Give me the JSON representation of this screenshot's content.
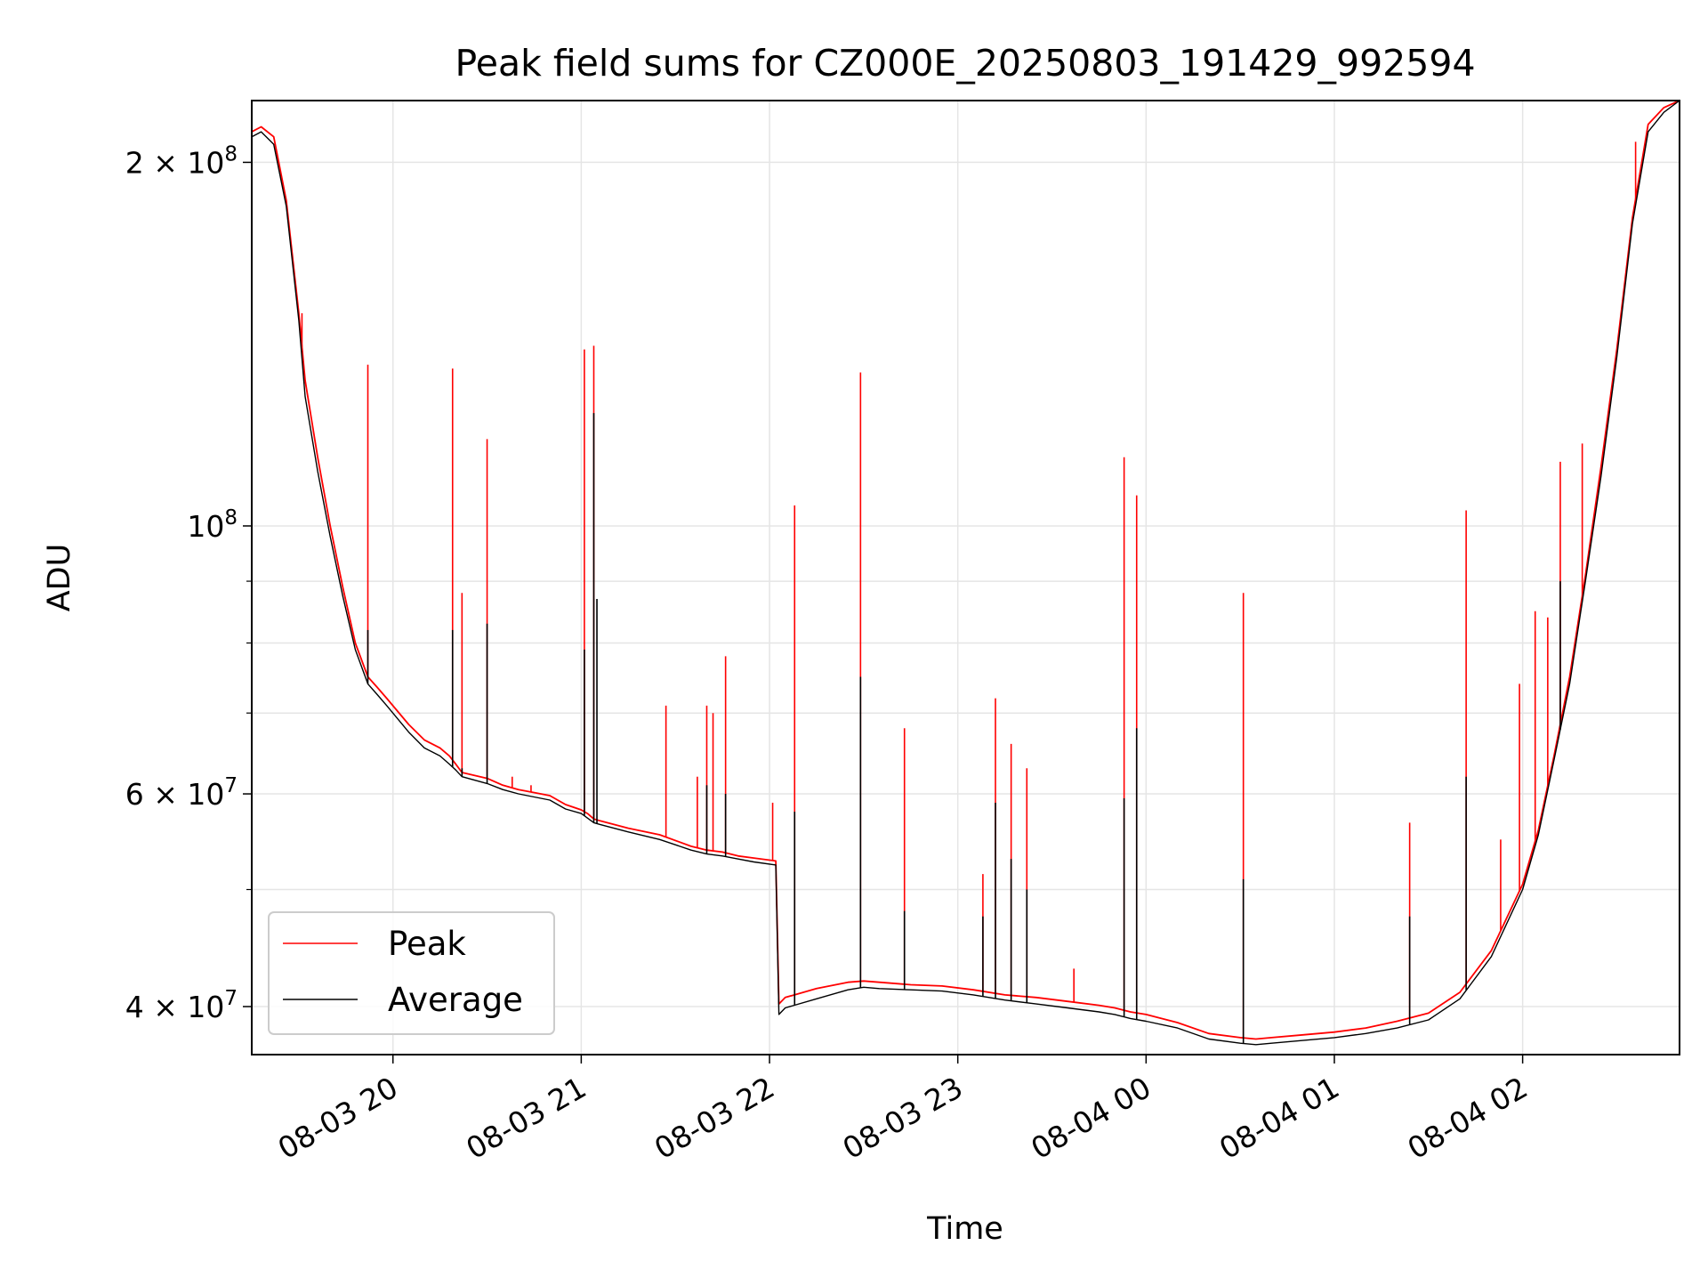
{
  "chart_data": {
    "type": "line",
    "title": "Peak field sums for CZ000E_20250803_191429_992594",
    "xlabel": "Time",
    "ylabel": "ADU",
    "yscale": "log",
    "x_unit": "time",
    "xlim": [
      "2025-08-03 19:15",
      "2025-08-04 02:50"
    ],
    "ylim": [
      36500000,
      225000000
    ],
    "grid": true,
    "legend_position": "lower-left",
    "x_ticks": [
      {
        "t": "2025-08-03 20:00",
        "label": "08-03 20"
      },
      {
        "t": "2025-08-03 21:00",
        "label": "08-03 21"
      },
      {
        "t": "2025-08-03 22:00",
        "label": "08-03 22"
      },
      {
        "t": "2025-08-03 23:00",
        "label": "08-03 23"
      },
      {
        "t": "2025-08-04 00:00",
        "label": "08-04 00"
      },
      {
        "t": "2025-08-04 01:00",
        "label": "08-04 01"
      },
      {
        "t": "2025-08-04 02:00",
        "label": "08-04 02"
      }
    ],
    "y_ticks": [
      {
        "v": 40000000,
        "mantissa": "4",
        "exp": "7"
      },
      {
        "v": 60000000,
        "mantissa": "6",
        "exp": "7"
      },
      {
        "v": 100000000,
        "mantissa": "",
        "exp": "8"
      },
      {
        "v": 200000000,
        "mantissa": "2",
        "exp": "8"
      }
    ],
    "y_minor_ticks": [
      50000000,
      70000000,
      80000000,
      90000000
    ],
    "series": [
      {
        "name": "Peak",
        "color": "#ff0000",
        "x": [
          "2025-08-03 19:15",
          "2025-08-03 19:18",
          "2025-08-03 19:22",
          "2025-08-03 19:26",
          "2025-08-03 19:30",
          "2025-08-03 19:32",
          "2025-08-03 19:36",
          "2025-08-03 19:40",
          "2025-08-03 19:44",
          "2025-08-03 19:48",
          "2025-08-03 19:52",
          "2025-08-03 19:55",
          "2025-08-03 19:58",
          "2025-08-03 20:05",
          "2025-08-03 20:10",
          "2025-08-03 20:15",
          "2025-08-03 20:18",
          "2025-08-03 20:20",
          "2025-08-03 20:22",
          "2025-08-03 20:30",
          "2025-08-03 20:35",
          "2025-08-03 20:40",
          "2025-08-03 20:50",
          "2025-08-03 20:55",
          "2025-08-03 21:00",
          "2025-08-03 21:02",
          "2025-08-03 21:04",
          "2025-08-03 21:06",
          "2025-08-03 21:15",
          "2025-08-03 21:25",
          "2025-08-03 21:35",
          "2025-08-03 21:40",
          "2025-08-03 21:45",
          "2025-08-03 21:50",
          "2025-08-03 21:55",
          "2025-08-03 22:02",
          "2025-08-03 22:03",
          "2025-08-03 22:05",
          "2025-08-03 22:15",
          "2025-08-03 22:25",
          "2025-08-03 22:30",
          "2025-08-03 22:35",
          "2025-08-03 22:45",
          "2025-08-03 22:55",
          "2025-08-03 23:05",
          "2025-08-03 23:15",
          "2025-08-03 23:25",
          "2025-08-03 23:35",
          "2025-08-03 23:45",
          "2025-08-03 23:50",
          "2025-08-03 23:55",
          "2025-08-04 00:00",
          "2025-08-04 00:10",
          "2025-08-04 00:20",
          "2025-08-04 00:30",
          "2025-08-04 00:35",
          "2025-08-04 00:40",
          "2025-08-04 00:50",
          "2025-08-04 01:00",
          "2025-08-04 01:10",
          "2025-08-04 01:20",
          "2025-08-04 01:30",
          "2025-08-04 01:40",
          "2025-08-04 01:50",
          "2025-08-04 02:00",
          "2025-08-04 02:05",
          "2025-08-04 02:10",
          "2025-08-04 02:15",
          "2025-08-04 02:20",
          "2025-08-04 02:25",
          "2025-08-04 02:30",
          "2025-08-04 02:35",
          "2025-08-04 02:40",
          "2025-08-04 02:45",
          "2025-08-04 02:50"
        ],
        "y": [
          212000000,
          214000000,
          210000000,
          186000000,
          150000000,
          132000000,
          114000000,
          100000000,
          89000000,
          80000000,
          75000000,
          73500000,
          72000000,
          68500000,
          66500000,
          65500000,
          64500000,
          63500000,
          62500000,
          61800000,
          61000000,
          60500000,
          59800000,
          58800000,
          58200000,
          57800000,
          57200000,
          57000000,
          56200000,
          55500000,
          54300000,
          53900000,
          53700000,
          53300000,
          53100000,
          52800000,
          40200000,
          40700000,
          41400000,
          41900000,
          42000000,
          41900000,
          41700000,
          41600000,
          41300000,
          40900000,
          40700000,
          40400000,
          40100000,
          39900000,
          39600000,
          39400000,
          38800000,
          38000000,
          37700000,
          37600000,
          37700000,
          37900000,
          38100000,
          38400000,
          38900000,
          39500000,
          41100000,
          44500000,
          50500000,
          56000000,
          64500000,
          75000000,
          91000000,
          112000000,
          140000000,
          180000000,
          215000000,
          222000000,
          225000000
        ],
        "spikes": [
          {
            "t": "2025-08-03 19:31",
            "value": 150000000
          },
          {
            "t": "2025-08-03 19:52",
            "value": 136000000
          },
          {
            "t": "2025-08-03 20:19",
            "value": 135000000
          },
          {
            "t": "2025-08-03 20:22",
            "value": 88000000
          },
          {
            "t": "2025-08-03 20:30",
            "value": 118000000
          },
          {
            "t": "2025-08-03 20:38",
            "value": 62000000
          },
          {
            "t": "2025-08-03 20:44",
            "value": 61000000
          },
          {
            "t": "2025-08-03 21:01",
            "value": 140000000
          },
          {
            "t": "2025-08-03 21:04",
            "value": 141000000
          },
          {
            "t": "2025-08-03 21:27",
            "value": 71000000
          },
          {
            "t": "2025-08-03 21:37",
            "value": 62000000
          },
          {
            "t": "2025-08-03 21:40",
            "value": 71000000
          },
          {
            "t": "2025-08-03 21:42",
            "value": 70000000
          },
          {
            "t": "2025-08-03 21:46",
            "value": 78000000
          },
          {
            "t": "2025-08-03 22:01",
            "value": 59000000
          },
          {
            "t": "2025-08-03 22:08",
            "value": 104000000
          },
          {
            "t": "2025-08-03 22:29",
            "value": 134000000
          },
          {
            "t": "2025-08-03 22:43",
            "value": 68000000
          },
          {
            "t": "2025-08-03 23:08",
            "value": 51500000
          },
          {
            "t": "2025-08-03 23:12",
            "value": 72000000
          },
          {
            "t": "2025-08-03 23:17",
            "value": 66000000
          },
          {
            "t": "2025-08-03 23:22",
            "value": 63000000
          },
          {
            "t": "2025-08-03 23:37",
            "value": 43000000
          },
          {
            "t": "2025-08-03 23:53",
            "value": 114000000
          },
          {
            "t": "2025-08-03 23:57",
            "value": 106000000
          },
          {
            "t": "2025-08-04 00:31",
            "value": 88000000
          },
          {
            "t": "2025-08-04 01:24",
            "value": 56800000
          },
          {
            "t": "2025-08-04 01:42",
            "value": 103000000
          },
          {
            "t": "2025-08-04 01:53",
            "value": 55000000
          },
          {
            "t": "2025-08-04 01:59",
            "value": 74000000
          },
          {
            "t": "2025-08-04 02:04",
            "value": 85000000
          },
          {
            "t": "2025-08-04 02:08",
            "value": 84000000
          },
          {
            "t": "2025-08-04 02:12",
            "value": 113000000
          },
          {
            "t": "2025-08-04 02:19",
            "value": 117000000
          },
          {
            "t": "2025-08-04 02:36",
            "value": 208000000
          }
        ]
      },
      {
        "name": "Average",
        "color": "#000000",
        "x": [
          "2025-08-03 19:15",
          "2025-08-03 19:18",
          "2025-08-03 19:22",
          "2025-08-03 19:26",
          "2025-08-03 19:30",
          "2025-08-03 19:32",
          "2025-08-03 19:36",
          "2025-08-03 19:40",
          "2025-08-03 19:44",
          "2025-08-03 19:48",
          "2025-08-03 19:52",
          "2025-08-03 19:55",
          "2025-08-03 19:58",
          "2025-08-03 20:05",
          "2025-08-03 20:10",
          "2025-08-03 20:15",
          "2025-08-03 20:18",
          "2025-08-03 20:20",
          "2025-08-03 20:22",
          "2025-08-03 20:30",
          "2025-08-03 20:35",
          "2025-08-03 20:40",
          "2025-08-03 20:50",
          "2025-08-03 20:55",
          "2025-08-03 21:00",
          "2025-08-03 21:02",
          "2025-08-03 21:04",
          "2025-08-03 21:06",
          "2025-08-03 21:15",
          "2025-08-03 21:25",
          "2025-08-03 21:35",
          "2025-08-03 21:40",
          "2025-08-03 21:45",
          "2025-08-03 21:50",
          "2025-08-03 21:55",
          "2025-08-03 22:02",
          "2025-08-03 22:03",
          "2025-08-03 22:05",
          "2025-08-03 22:15",
          "2025-08-03 22:25",
          "2025-08-03 22:30",
          "2025-08-03 22:35",
          "2025-08-03 22:45",
          "2025-08-03 22:55",
          "2025-08-03 23:05",
          "2025-08-03 23:15",
          "2025-08-03 23:25",
          "2025-08-03 23:35",
          "2025-08-03 23:45",
          "2025-08-03 23:50",
          "2025-08-03 23:55",
          "2025-08-04 00:00",
          "2025-08-04 00:10",
          "2025-08-04 00:20",
          "2025-08-04 00:30",
          "2025-08-04 00:35",
          "2025-08-04 00:40",
          "2025-08-04 00:50",
          "2025-08-04 01:00",
          "2025-08-04 01:10",
          "2025-08-04 01:20",
          "2025-08-04 01:30",
          "2025-08-04 01:40",
          "2025-08-04 01:50",
          "2025-08-04 02:00",
          "2025-08-04 02:05",
          "2025-08-04 02:10",
          "2025-08-04 02:15",
          "2025-08-04 02:20",
          "2025-08-04 02:25",
          "2025-08-04 02:30",
          "2025-08-04 02:35",
          "2025-08-04 02:40",
          "2025-08-04 02:45",
          "2025-08-04 02:50"
        ],
        "y": [
          210000000,
          212000000,
          207000000,
          184000000,
          148000000,
          128000000,
          111000000,
          98000000,
          87500000,
          79000000,
          74000000,
          72500000,
          71000000,
          67500000,
          65500000,
          64500000,
          63500000,
          62800000,
          62000000,
          61200000,
          60500000,
          60000000,
          59300000,
          58300000,
          57800000,
          57300000,
          56800000,
          56600000,
          55800000,
          55000000,
          53900000,
          53500000,
          53300000,
          53000000,
          52700000,
          52400000,
          39400000,
          39900000,
          40600000,
          41300000,
          41500000,
          41400000,
          41300000,
          41200000,
          40900000,
          40500000,
          40200000,
          39900000,
          39600000,
          39400000,
          39100000,
          38900000,
          38400000,
          37600000,
          37300000,
          37200000,
          37300000,
          37500000,
          37700000,
          38000000,
          38400000,
          39000000,
          40600000,
          44000000,
          50000000,
          55500000,
          64000000,
          74000000,
          90000000,
          110000000,
          138000000,
          178000000,
          212000000,
          220000000,
          225000000
        ],
        "spikes": [
          {
            "t": "2025-08-03 19:52",
            "value": 82000000
          },
          {
            "t": "2025-08-03 20:19",
            "value": 82000000
          },
          {
            "t": "2025-08-03 20:22",
            "value": 63000000
          },
          {
            "t": "2025-08-03 20:30",
            "value": 83000000
          },
          {
            "t": "2025-08-03 21:01",
            "value": 79000000
          },
          {
            "t": "2025-08-03 21:04",
            "value": 124000000
          },
          {
            "t": "2025-08-03 21:05",
            "value": 87000000
          },
          {
            "t": "2025-08-03 21:40",
            "value": 61000000
          },
          {
            "t": "2025-08-03 21:46",
            "value": 60000000
          },
          {
            "t": "2025-08-03 22:08",
            "value": 58000000
          },
          {
            "t": "2025-08-03 22:29",
            "value": 75000000
          },
          {
            "t": "2025-08-03 22:43",
            "value": 48000000
          },
          {
            "t": "2025-08-03 23:08",
            "value": 47500000
          },
          {
            "t": "2025-08-03 23:12",
            "value": 59000000
          },
          {
            "t": "2025-08-03 23:17",
            "value": 53000000
          },
          {
            "t": "2025-08-03 23:22",
            "value": 50000000
          },
          {
            "t": "2025-08-03 23:53",
            "value": 59500000
          },
          {
            "t": "2025-08-03 23:57",
            "value": 68000000
          },
          {
            "t": "2025-08-04 00:31",
            "value": 51000000
          },
          {
            "t": "2025-08-04 01:24",
            "value": 47500000
          },
          {
            "t": "2025-08-04 01:42",
            "value": 62000000
          },
          {
            "t": "2025-08-04 02:12",
            "value": 90000000
          }
        ]
      }
    ]
  }
}
